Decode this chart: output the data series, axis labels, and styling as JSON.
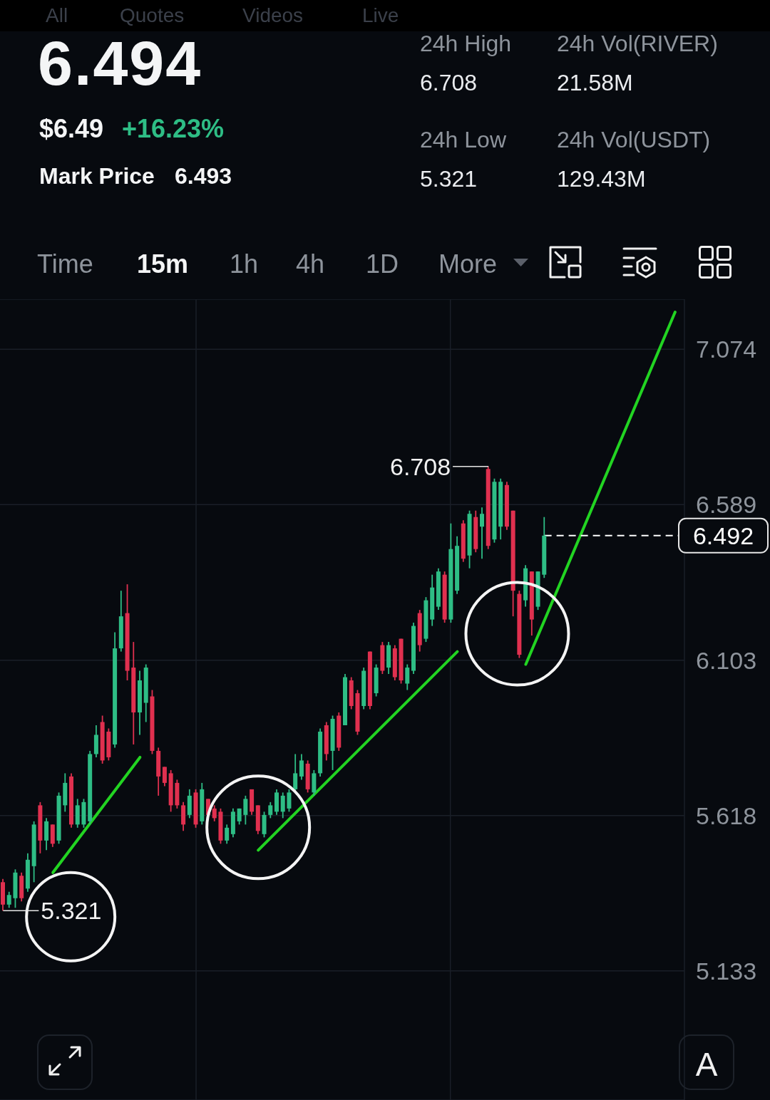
{
  "chart_data": [
    {
      "type": "other",
      "annotations": [
        "All",
        "Quotes",
        "Videos",
        "Live",
        "6.494",
        "$6.49",
        "+16.23%",
        "Mark Price",
        "6.493",
        "24h High",
        "6.708",
        "24h Vol(RIVER)",
        "21.58M",
        "24h Low",
        "5.321",
        "24h Vol(USDT)",
        "129.43M",
        "Time",
        "15m",
        "1h",
        "4h",
        "1D",
        "More"
      ]
    },
    {
      "type": "candlestick",
      "categories": [
        null,
        null,
        null,
        null,
        null,
        null,
        null,
        null,
        null,
        null,
        null,
        null,
        null,
        null,
        null,
        null,
        null,
        null,
        null,
        null,
        null,
        null,
        null,
        null,
        null,
        null,
        null,
        null,
        null,
        null,
        null,
        null,
        null,
        null,
        null,
        null,
        null,
        null,
        null,
        null,
        null,
        null,
        null,
        null,
        null,
        null,
        null,
        null,
        null,
        null,
        null,
        null,
        null,
        null,
        null,
        null,
        null,
        null,
        null,
        null,
        null,
        null,
        null,
        null,
        null,
        null,
        null,
        null,
        null,
        null,
        null,
        null,
        null,
        null,
        null,
        null,
        null,
        null,
        null,
        null,
        null,
        null,
        null,
        null,
        null,
        null,
        null,
        null,
        null,
        null,
        null,
        null,
        null,
        null,
        null,
        null,
        null,
        null,
        null,
        null,
        null,
        null,
        null,
        null,
        null,
        null,
        null,
        null,
        null,
        null
      ],
      "ohlc": [
        [
          5.41,
          5.42,
          5.321,
          5.34
        ],
        [
          5.34,
          5.38,
          5.33,
          5.37
        ],
        [
          5.36,
          5.45,
          5.33,
          5.44
        ],
        [
          5.43,
          5.44,
          5.35,
          5.36
        ],
        [
          5.39,
          5.5,
          5.38,
          5.48
        ],
        [
          5.46,
          5.6,
          5.41,
          5.59
        ],
        [
          5.65,
          5.66,
          5.5,
          5.54
        ],
        [
          5.54,
          5.61,
          5.51,
          5.6
        ],
        [
          5.59,
          5.59,
          5.52,
          5.53
        ],
        [
          5.54,
          5.69,
          5.53,
          5.68
        ],
        [
          5.65,
          5.75,
          5.63,
          5.72
        ],
        [
          5.74,
          5.75,
          5.58,
          5.59
        ],
        [
          5.59,
          5.67,
          5.58,
          5.65
        ],
        [
          5.59,
          5.67,
          5.58,
          5.66
        ],
        [
          5.6,
          5.82,
          5.59,
          5.81
        ],
        [
          5.81,
          5.9,
          5.8,
          5.87
        ],
        [
          5.91,
          5.93,
          5.78,
          5.79
        ],
        [
          5.88,
          5.89,
          5.79,
          5.8
        ],
        [
          5.84,
          6.19,
          5.83,
          6.14
        ],
        [
          6.14,
          6.32,
          6.13,
          6.24
        ],
        [
          6.25,
          6.34,
          6.04,
          6.07
        ],
        [
          6.08,
          6.16,
          5.84,
          5.94
        ],
        [
          5.94,
          6.07,
          5.87,
          6.04
        ],
        [
          5.97,
          6.09,
          5.91,
          6.08
        ],
        [
          5.99,
          6.01,
          5.81,
          5.82
        ],
        [
          5.82,
          5.83,
          5.68,
          5.74
        ],
        [
          5.77,
          5.77,
          5.71,
          5.72
        ],
        [
          5.75,
          5.76,
          5.63,
          5.65
        ],
        [
          5.72,
          5.73,
          5.64,
          5.65
        ],
        [
          5.65,
          5.66,
          5.57,
          5.59
        ],
        [
          5.62,
          5.7,
          5.61,
          5.68
        ],
        [
          5.69,
          5.7,
          5.58,
          5.59
        ],
        [
          5.6,
          5.72,
          5.59,
          5.7
        ],
        [
          5.67,
          5.67,
          5.61,
          5.62
        ],
        [
          5.64,
          5.65,
          5.6,
          5.61
        ],
        [
          5.63,
          5.64,
          5.53,
          5.54
        ],
        [
          5.54,
          5.59,
          5.53,
          5.58
        ],
        [
          5.56,
          5.64,
          5.55,
          5.63
        ],
        [
          5.6,
          5.64,
          5.59,
          5.64
        ],
        [
          5.62,
          5.68,
          5.59,
          5.67
        ],
        [
          5.7,
          5.7,
          5.62,
          5.63
        ],
        [
          5.65,
          5.65,
          5.56,
          5.57
        ],
        [
          5.56,
          5.63,
          5.55,
          5.62
        ],
        [
          5.62,
          5.66,
          5.61,
          5.65
        ],
        [
          5.63,
          5.7,
          5.62,
          5.69
        ],
        [
          5.63,
          5.69,
          5.61,
          5.68
        ],
        [
          5.64,
          5.7,
          5.63,
          5.69
        ],
        [
          5.7,
          5.81,
          5.69,
          5.75
        ],
        [
          5.74,
          5.81,
          5.73,
          5.79
        ],
        [
          5.78,
          5.79,
          5.69,
          5.7
        ],
        [
          5.69,
          5.76,
          5.68,
          5.75
        ],
        [
          5.75,
          5.89,
          5.74,
          5.88
        ],
        [
          5.9,
          5.91,
          5.79,
          5.81
        ],
        [
          5.82,
          5.93,
          5.76,
          5.92
        ],
        [
          5.93,
          5.94,
          5.82,
          5.83
        ],
        [
          5.9,
          6.06,
          5.9,
          6.05
        ],
        [
          6.04,
          6.05,
          5.95,
          5.96
        ],
        [
          6.0,
          6.01,
          5.87,
          5.88
        ],
        [
          5.96,
          6.08,
          5.95,
          6.07
        ],
        [
          6.13,
          6.13,
          5.95,
          5.96
        ],
        [
          6.0,
          6.09,
          5.99,
          6.08
        ],
        [
          6.15,
          6.16,
          6.06,
          6.07
        ],
        [
          6.08,
          6.16,
          6.06,
          6.15
        ],
        [
          6.14,
          6.15,
          6.04,
          6.05
        ],
        [
          6.17,
          6.17,
          6.03,
          6.04
        ],
        [
          6.03,
          6.09,
          6.01,
          6.08
        ],
        [
          6.07,
          6.22,
          6.06,
          6.21
        ],
        [
          6.25,
          6.26,
          6.13,
          6.15
        ],
        [
          6.17,
          6.3,
          6.16,
          6.29
        ],
        [
          6.23,
          6.37,
          6.21,
          6.33
        ],
        [
          6.27,
          6.39,
          6.26,
          6.38
        ],
        [
          6.37,
          6.38,
          6.22,
          6.23
        ],
        [
          6.23,
          6.53,
          6.22,
          6.45
        ],
        [
          6.32,
          6.49,
          6.31,
          6.46
        ],
        [
          6.53,
          6.54,
          6.41,
          6.42
        ],
        [
          6.43,
          6.57,
          6.39,
          6.56
        ],
        [
          6.55,
          6.57,
          6.44,
          6.45
        ],
        [
          6.52,
          6.58,
          6.42,
          6.56
        ],
        [
          6.7,
          6.708,
          6.45,
          6.46
        ],
        [
          6.48,
          6.67,
          6.47,
          6.66
        ],
        [
          6.52,
          6.67,
          6.48,
          6.66
        ],
        [
          6.65,
          6.66,
          6.51,
          6.52
        ],
        [
          6.57,
          6.57,
          6.24,
          6.32
        ],
        [
          6.31,
          6.32,
          6.11,
          6.12
        ],
        [
          6.29,
          6.4,
          6.27,
          6.39
        ],
        [
          6.38,
          6.38,
          6.18,
          6.23
        ],
        [
          6.27,
          6.38,
          6.26,
          6.38
        ],
        [
          6.37,
          6.55,
          6.36,
          6.492
        ],
        null,
        null,
        null,
        null,
        null,
        null,
        null,
        null,
        null,
        null,
        null,
        null,
        null,
        null,
        null,
        null,
        null,
        null,
        null,
        null,
        null,
        null
      ],
      "colors": [
        "#e0304f",
        "#2ebd85",
        "#2ebd85",
        "#e0304f",
        "#2ebd85",
        "#2ebd85",
        "#e0304f",
        "#2ebd85",
        "#e0304f",
        "#2ebd85",
        "#2ebd85",
        "#e0304f",
        "#2ebd85",
        "#2ebd85",
        "#2ebd85",
        "#2ebd85",
        "#e0304f",
        "#e0304f",
        "#2ebd85",
        "#2ebd85",
        "#e0304f",
        "#e0304f",
        "#2ebd85",
        "#2ebd85",
        "#e0304f",
        "#e0304f",
        "#e0304f",
        "#e0304f",
        "#e0304f",
        "#e0304f",
        "#2ebd85",
        "#e0304f",
        "#2ebd85",
        "#e0304f",
        "#e0304f",
        "#e0304f",
        "#2ebd85",
        "#2ebd85",
        "#2ebd85",
        "#2ebd85",
        "#e0304f",
        "#e0304f",
        "#2ebd85",
        "#2ebd85",
        "#2ebd85",
        "#2ebd85",
        "#2ebd85",
        "#2ebd85",
        "#2ebd85",
        "#e0304f",
        "#2ebd85",
        "#2ebd85",
        "#e0304f",
        "#2ebd85",
        "#e0304f",
        "#2ebd85",
        "#e0304f",
        "#e0304f",
        "#2ebd85",
        "#e0304f",
        "#2ebd85",
        "#e0304f",
        "#2ebd85",
        "#e0304f",
        "#e0304f",
        "#2ebd85",
        "#2ebd85",
        "#e0304f",
        "#2ebd85",
        "#2ebd85",
        "#2ebd85",
        "#e0304f",
        "#2ebd85",
        "#2ebd85",
        "#e0304f",
        "#2ebd85",
        "#e0304f",
        "#2ebd85",
        "#e0304f",
        "#2ebd85",
        "#2ebd85",
        "#e0304f",
        "#e0304f",
        "#e0304f",
        "#2ebd85",
        "#e0304f",
        "#2ebd85",
        "#2ebd85",
        null,
        null,
        null,
        null,
        null,
        null,
        null,
        null,
        null,
        null,
        null,
        null,
        null,
        null,
        null,
        null,
        null,
        null,
        null,
        null,
        null,
        null
      ],
      "series": [
        {
          "type": "line",
          "color": "#22d422",
          "values": [
            null,
            null,
            null,
            null,
            null,
            null,
            null,
            null,
            5.44,
            null,
            null,
            null,
            null,
            null,
            null,
            null,
            null,
            null,
            null,
            null,
            null,
            null,
            5.8,
            null,
            null,
            null,
            null,
            null,
            null,
            null,
            null,
            null,
            null,
            null,
            null,
            null,
            null,
            null,
            null,
            null,
            null,
            null,
            null,
            null,
            null,
            null,
            null,
            null,
            null,
            null,
            null,
            null,
            null,
            null,
            null,
            null,
            null,
            null,
            null,
            null,
            null,
            null,
            null,
            null,
            null,
            null,
            null,
            null,
            null,
            null,
            null,
            null,
            null,
            null,
            null,
            null,
            null,
            null,
            null,
            null,
            null,
            null,
            null,
            null,
            null,
            null,
            null,
            null,
            null,
            null,
            null,
            null,
            null,
            null,
            null,
            null,
            null,
            null,
            null,
            null,
            null,
            null,
            null,
            null,
            null,
            null,
            null,
            null,
            null,
            null
          ]
        },
        {
          "type": "line",
          "color": "#22d422",
          "values": [
            null,
            null,
            null,
            null,
            null,
            null,
            null,
            null,
            null,
            null,
            null,
            null,
            null,
            null,
            null,
            null,
            null,
            null,
            null,
            null,
            null,
            null,
            null,
            null,
            null,
            null,
            null,
            null,
            null,
            null,
            null,
            null,
            null,
            null,
            null,
            null,
            null,
            null,
            null,
            null,
            null,
            5.51,
            null,
            null,
            null,
            null,
            null,
            null,
            null,
            null,
            null,
            null,
            null,
            null,
            null,
            null,
            null,
            null,
            null,
            null,
            null,
            null,
            null,
            null,
            null,
            null,
            null,
            null,
            null,
            null,
            null,
            null,
            null,
            6.13,
            null,
            null,
            null,
            null,
            null,
            null,
            null,
            null,
            null,
            null,
            null,
            null,
            null,
            null,
            null,
            null,
            null,
            null,
            null,
            null,
            null,
            null,
            null,
            null,
            null,
            null,
            null,
            null,
            null,
            null,
            null,
            null,
            null,
            null,
            null,
            null
          ]
        },
        {
          "type": "line",
          "color": "#22d422",
          "values": [
            null,
            null,
            null,
            null,
            null,
            null,
            null,
            null,
            null,
            null,
            null,
            null,
            null,
            null,
            null,
            null,
            null,
            null,
            null,
            null,
            null,
            null,
            null,
            null,
            null,
            null,
            null,
            null,
            null,
            null,
            null,
            null,
            null,
            null,
            null,
            null,
            null,
            null,
            null,
            null,
            null,
            null,
            null,
            null,
            null,
            null,
            null,
            null,
            null,
            null,
            null,
            null,
            null,
            null,
            null,
            null,
            null,
            null,
            null,
            null,
            null,
            null,
            null,
            null,
            null,
            null,
            null,
            null,
            null,
            null,
            null,
            null,
            null,
            null,
            null,
            null,
            null,
            null,
            null,
            null,
            null,
            null,
            null,
            null,
            6.09,
            null,
            null,
            null,
            null,
            null,
            null,
            null,
            null,
            null,
            null,
            null,
            null,
            null,
            null,
            null,
            null,
            null,
            null,
            null,
            null,
            null,
            null,
            null,
            7.19,
            null
          ]
        }
      ],
      "ylim": [
        4.73,
        7.23
      ],
      "yticks": [
        5.133,
        5.618,
        6.103,
        6.589,
        7.074
      ],
      "grid": "y",
      "tick_labels": "y",
      "ref_lines": [
        {
          "axis": "y",
          "value": 6.492,
          "label": "6.492",
          "color": "#ffffff",
          "line_style": "dashed"
        }
      ],
      "annotations": [
        "6.708",
        "5.321",
        "A"
      ]
    }
  ]
}
